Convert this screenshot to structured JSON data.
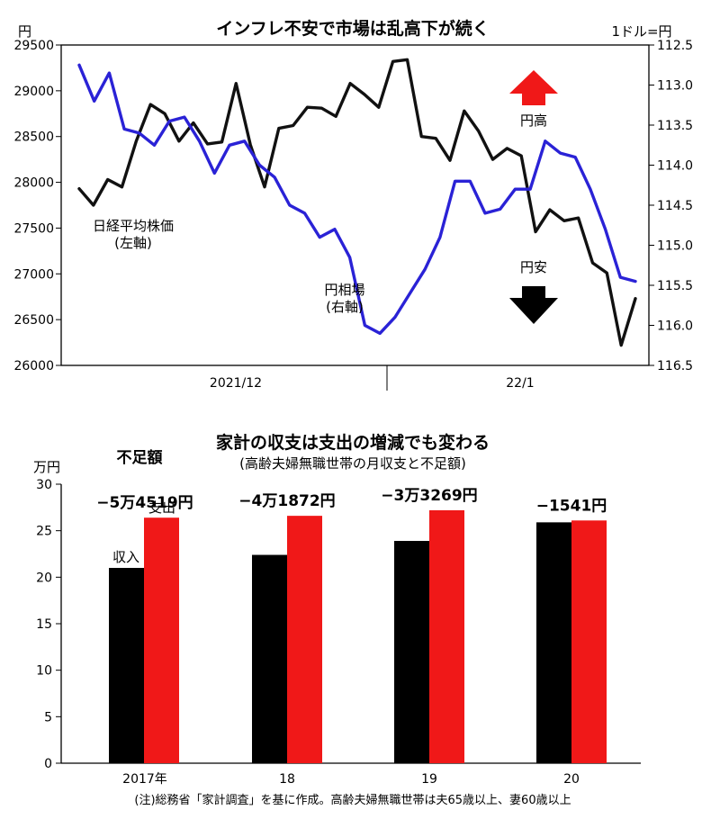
{
  "chart_data": [
    {
      "type": "line",
      "title": "インフレ不安で市場は乱高下が続く",
      "y_left_unit": "円",
      "y_right_unit": "1ドル=円",
      "ylim_left": [
        26000,
        29500
      ],
      "ylim_right": [
        112.5,
        116.5
      ],
      "yticks_left": [
        "29500",
        "29000",
        "28500",
        "28000",
        "27500",
        "27000",
        "26500",
        "26000"
      ],
      "yticks_right": [
        "112.5",
        "113.0",
        "113.5",
        "114.0",
        "114.5",
        "115.0",
        "115.5",
        "116.0",
        "116.5"
      ],
      "x_tick_labels": [
        "2021/12",
        "22/1"
      ],
      "annotations": {
        "yen_strong": "円高",
        "yen_weak": "円安",
        "nikkei_label": "日経平均株価",
        "nikkei_axis": "(左軸)",
        "yen_label": "円相場",
        "yen_axis": "(右軸)"
      },
      "colors": {
        "nikkei": "#111111",
        "yen": "#2a22d6",
        "up_arrow": "#f01818",
        "down_arrow": "#000000"
      },
      "series": [
        {
          "name": "日経平均株価",
          "axis": "left",
          "values": [
            27930,
            27750,
            28030,
            27950,
            28450,
            28850,
            28750,
            28450,
            28650,
            28420,
            28440,
            29080,
            28410,
            27950,
            28590,
            28620,
            28820,
            28810,
            28720,
            29080,
            28960,
            28820,
            29320,
            29340,
            28500,
            28480,
            28240,
            28780,
            28560,
            28250,
            28370,
            28290,
            27460,
            27700,
            27580,
            27610,
            27120,
            27010,
            26220,
            26730
          ]
        },
        {
          "name": "円相場",
          "axis": "right",
          "values": [
            112.75,
            113.2,
            112.85,
            113.55,
            113.6,
            113.75,
            113.45,
            113.4,
            113.7,
            114.1,
            113.75,
            113.7,
            114.0,
            114.15,
            114.5,
            114.6,
            114.9,
            114.8,
            115.15,
            116.0,
            116.1,
            115.9,
            115.6,
            115.3,
            114.9,
            114.2,
            114.2,
            114.6,
            114.55,
            114.3,
            114.3,
            113.7,
            113.85,
            113.9,
            114.3,
            114.8,
            115.4,
            115.45
          ]
        }
      ]
    },
    {
      "type": "bar",
      "title": "家計の収支は支出の増減でも変わる",
      "subtitle": "(高齢夫婦無職世帯の月収支と不足額)",
      "y_unit": "万円",
      "ylim": [
        0,
        30
      ],
      "yticks": [
        "30",
        "25",
        "20",
        "15",
        "10",
        "5",
        "0"
      ],
      "categories": [
        "2017年",
        "18",
        "19",
        "20"
      ],
      "series": [
        {
          "name": "収入",
          "color": "#000000",
          "values": [
            21.0,
            22.4,
            23.9,
            25.9
          ]
        },
        {
          "name": "支出",
          "color": "#f01818",
          "values": [
            26.4,
            26.6,
            27.2,
            26.1
          ]
        }
      ],
      "deficit_header": "不足額",
      "deficit_labels": [
        "−5万4519円",
        "−4万1872円",
        "−3万3269円",
        "−1541円"
      ]
    }
  ],
  "footnote": "(注)総務省「家計調査」を基に作成。高齢夫婦無職世帯は夫65歳以上、妻60歳以上"
}
